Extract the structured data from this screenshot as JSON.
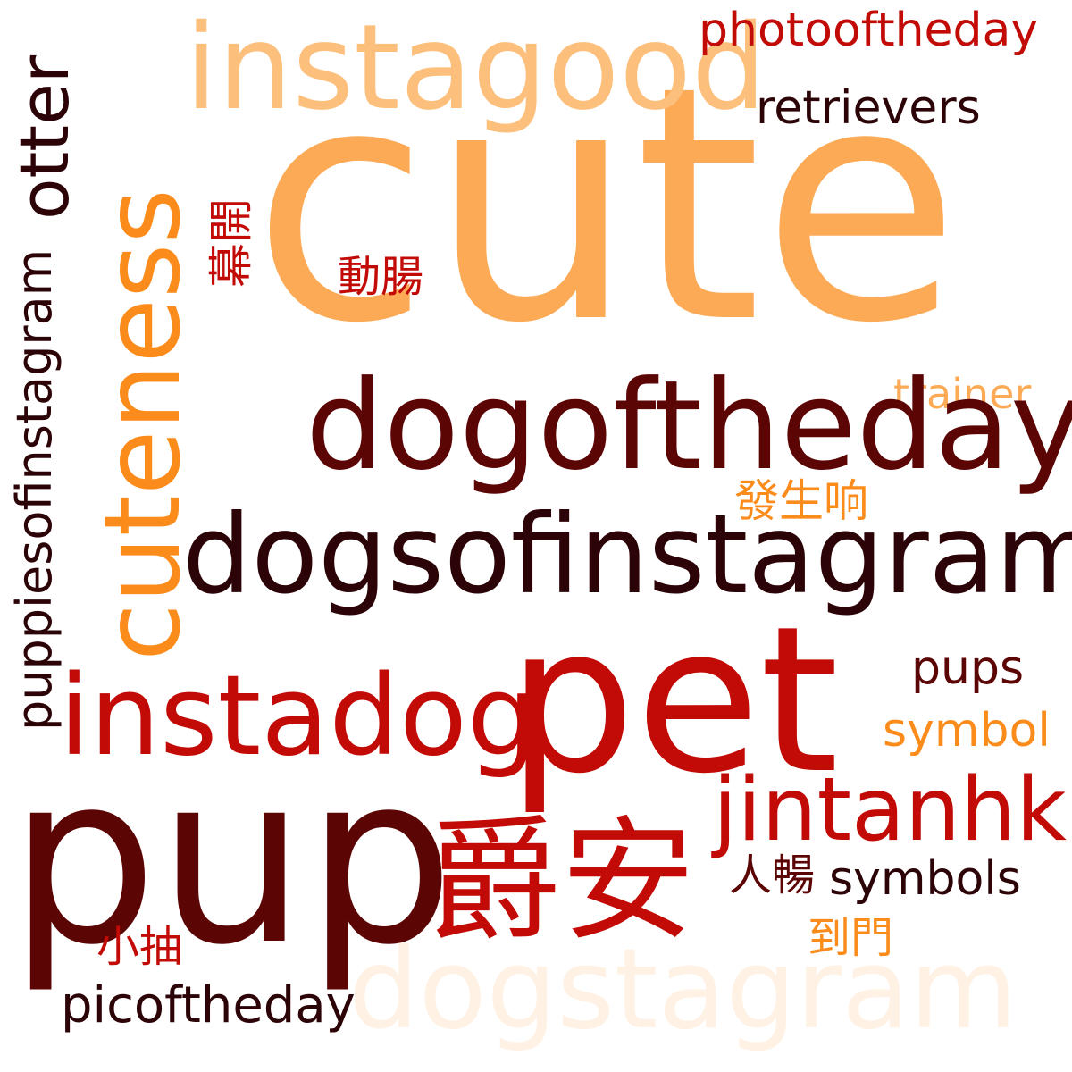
{
  "palette": {
    "light_orange": "#fcaa56",
    "peach": "#fdbf7c",
    "orange": "#fb8c1c",
    "red": "#c20a06",
    "dark_red": "#5c0505",
    "black_red": "#2c0407",
    "cream": "#fff1e3"
  },
  "words": {
    "cute": "cute",
    "instagood": "instagood",
    "photooftheday": "photooftheday",
    "retrievers": "retrievers",
    "otter": "otter",
    "cuteness": "cuteness",
    "mu_kai": "幕開",
    "dong_cheung": "動腸",
    "trainer": "trainer",
    "dogoftheday": "dogoftheday",
    "fat_sang_heung": "發生响",
    "puppiesofinstagram": "puppiesofinstagram",
    "dogsofinstagram": "dogsofinstagram",
    "pups": "pups",
    "pet": "pet",
    "instadog": "instadog",
    "symbol": "symbol",
    "jintanhk": "jintanhk",
    "pup": "pup",
    "jeuk_on": "爵安",
    "yan_cheung": "人暢",
    "symbols": "symbols",
    "siu_chau": "小抽",
    "dou_mun": "到門",
    "picoftheday": "picoftheday",
    "dogstagram": "dogstagram"
  }
}
